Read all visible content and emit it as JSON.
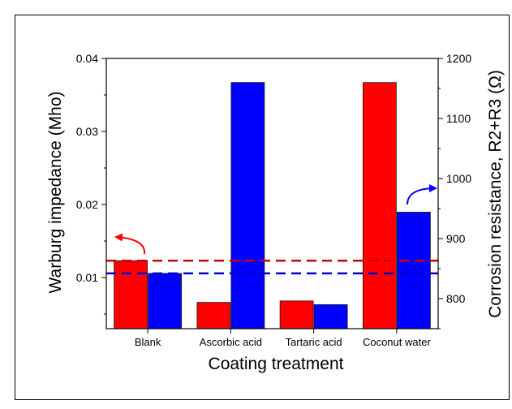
{
  "chart_data": {
    "type": "bar",
    "xlabel": "Coating treatment",
    "ylabel_left": "Warburg impedance (Mho)",
    "ylabel_right": "Corrosion resistance, R2+R3 (Ω)",
    "categories": [
      "Blank",
      "Ascorbic acid",
      "Tartaric acid",
      "Coconut water"
    ],
    "ylim_left": [
      0.003,
      0.04
    ],
    "yticks_left": [
      "0.01",
      "0.02",
      "0.03",
      "0.04"
    ],
    "ylim_right": [
      750,
      1200
    ],
    "yticks_right": [
      "800",
      "900",
      "1000",
      "1100",
      "1200"
    ],
    "series": [
      {
        "axis": "left",
        "color": "#ff0000",
        "values": [
          0.0123,
          0.0066,
          0.0068,
          0.0367
        ]
      },
      {
        "axis": "right",
        "color": "#0000ff",
        "values": [
          842,
          1160,
          790,
          944
        ]
      }
    ],
    "reference_lines": [
      {
        "axis": "left",
        "value": 0.0123,
        "color": "#cc0000",
        "style": "dashed"
      },
      {
        "axis": "right",
        "value": 842,
        "color": "#0000cc",
        "style": "dashed"
      }
    ],
    "annotations": [
      {
        "type": "arrow",
        "color": "#ff0000",
        "points_to": "left axis",
        "attached_to": "red dashed line"
      },
      {
        "type": "arrow",
        "color": "#0000ff",
        "points_to": "right axis",
        "attached_to": "Coconut water blue bar"
      }
    ],
    "grid": false,
    "legend": "none"
  }
}
